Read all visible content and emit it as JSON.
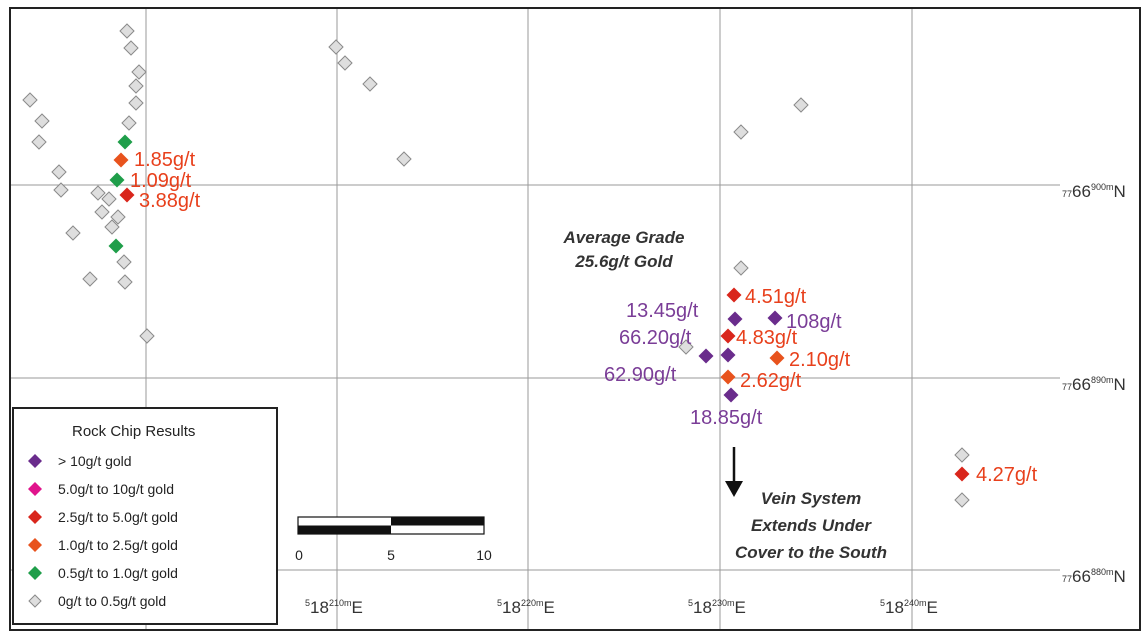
{
  "colors": {
    "gt10": "#6a2c8c",
    "range5to10": "#e0148c",
    "range25to5": "#d9261c",
    "range1to25": "#e8531d",
    "range05to1": "#1f9e4a",
    "lt05_fill": "#dedede",
    "lt05_stroke": "#8a8a8a",
    "label_purple": "#7a3d97",
    "label_red": "#e8401c",
    "grid": "#9a9a9a"
  },
  "grid": {
    "northings": [
      {
        "prefix": "77",
        "main": "66",
        "sup": "900m",
        "suffix": "N"
      },
      {
        "prefix": "77",
        "main": "66",
        "sup": "890m",
        "suffix": "N"
      },
      {
        "prefix": "77",
        "main": "66",
        "sup": "880m",
        "suffix": "N"
      }
    ],
    "eastings": [
      {
        "prefix": "5",
        "main": "18",
        "sup": "210m",
        "suffix": "E"
      },
      {
        "prefix": "5",
        "main": "18",
        "sup": "220m",
        "suffix": "E"
      },
      {
        "prefix": "5",
        "main": "18",
        "sup": "230m",
        "suffix": "E"
      },
      {
        "prefix": "5",
        "main": "18",
        "sup": "240m",
        "suffix": "E"
      }
    ]
  },
  "labels": {
    "west_1": "1.85g/t",
    "west_2": "1.09g/t",
    "west_3": "3.88g/t",
    "l_4_51": "4.51g/t",
    "l_13_45": "13.45g/t",
    "l_108": "108g/t",
    "l_66_20": "66.20g/t",
    "l_4_83": "4.83g/t",
    "l_2_10": "2.10g/t",
    "l_62_90": "62.90g/t",
    "l_2_62": "2.62g/t",
    "l_18_85": "18.85g/t",
    "l_4_27": "4.27g/t"
  },
  "annotations": {
    "avg_grade_1": "Average Grade",
    "avg_grade_2": "25.6g/t Gold",
    "vein_1": "Vein System",
    "vein_2": "Extends Under",
    "vein_3": "Cover to the South"
  },
  "legend": {
    "title": "Rock Chip Results",
    "items": [
      {
        "label": "> 10g/t gold",
        "color_key": "gt10"
      },
      {
        "label": "5.0g/t to  10g/t gold",
        "color_key": "range5to10"
      },
      {
        "label": "2.5g/t to  5.0g/t gold",
        "color_key": "range25to5"
      },
      {
        "label": "1.0g/t to  2.5g/t gold",
        "color_key": "range1to25"
      },
      {
        "label": "0.5g/t to  1.0g/t gold",
        "color_key": "range05to1"
      },
      {
        "label": "0g/t    to  0.5g/t gold",
        "color_key": "lt05"
      }
    ]
  },
  "scale": {
    "ticks": [
      "0",
      "5",
      "10"
    ]
  }
}
